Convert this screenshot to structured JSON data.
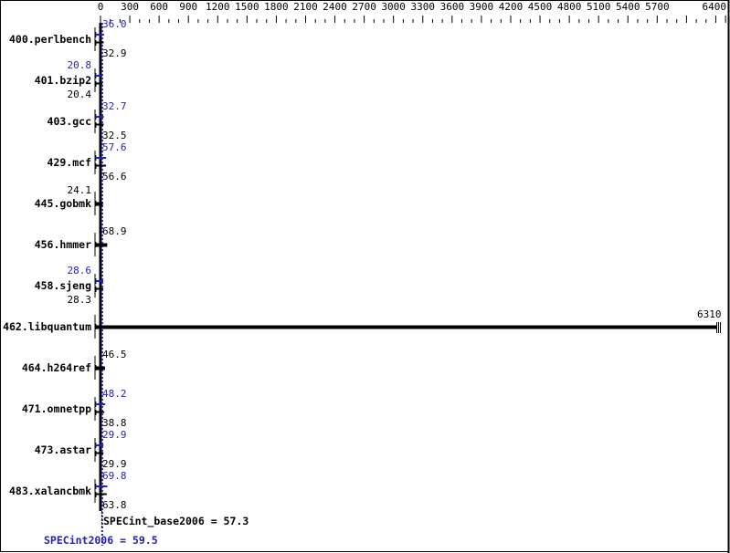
{
  "chart_data": {
    "type": "bar",
    "orientation": "horizontal",
    "xlim": [
      0,
      6400
    ],
    "x_ticks": [
      "0",
      "300",
      "600",
      "900",
      "1200",
      "1500",
      "1800",
      "2100",
      "2400",
      "2700",
      "3000",
      "3300",
      "3600",
      "3900",
      "4200",
      "4500",
      "4800",
      "5100",
      "5400",
      "5700",
      "6400"
    ],
    "categories": [
      "400.perlbench",
      "401.bzip2",
      "403.gcc",
      "429.mcf",
      "445.gobmk",
      "456.hmmer",
      "458.sjeng",
      "462.libquantum",
      "464.h264ref",
      "471.omnetpp",
      "473.astar",
      "483.xalancbmk"
    ],
    "series": [
      {
        "name": "SPECint2006",
        "color": "#2222bb",
        "values": [
          36.0,
          20.8,
          32.7,
          57.6,
          null,
          null,
          28.6,
          null,
          null,
          48.2,
          29.9,
          69.8
        ],
        "labels": [
          "36.0",
          "20.8",
          "32.7",
          "57.6",
          "",
          "",
          "28.6",
          "",
          "",
          "48.2",
          "29.9",
          "69.8"
        ]
      },
      {
        "name": "SPECint_base2006",
        "color": "#000000",
        "values": [
          32.9,
          20.4,
          32.5,
          56.6,
          24.1,
          68.9,
          28.3,
          6310,
          46.5,
          38.8,
          29.9,
          63.8
        ],
        "labels": [
          "32.9",
          "20.4",
          "32.5",
          "56.6",
          "24.1",
          "68.9",
          "28.3",
          "6310",
          "46.5",
          "38.8",
          "29.9",
          "63.8"
        ]
      }
    ],
    "base_summary": "SPECint_base2006 = 57.3",
    "peak_summary": "SPECint2006 = 59.5",
    "base_mean": 57.3,
    "peak_mean": 59.5
  }
}
